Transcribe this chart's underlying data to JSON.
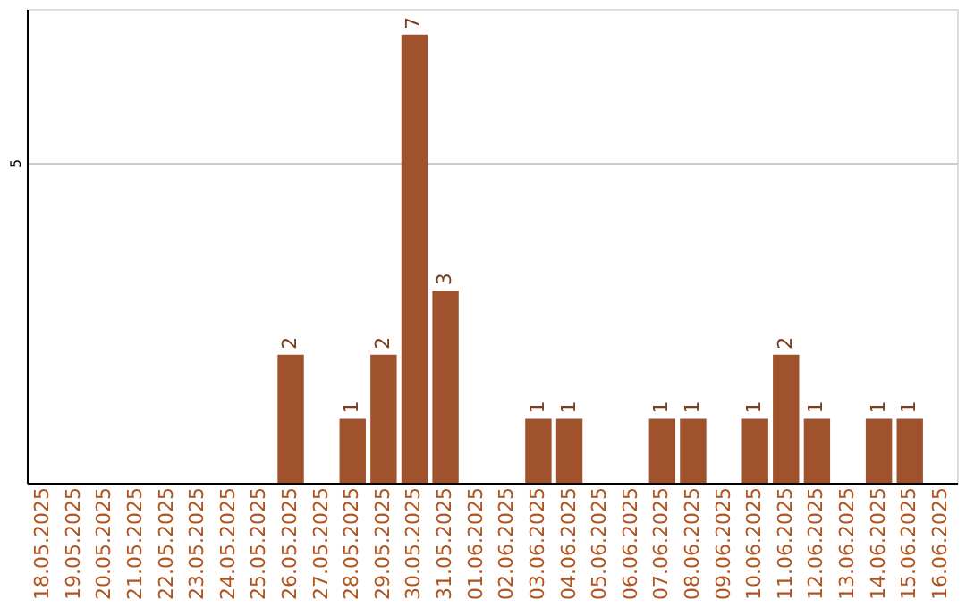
{
  "chart_data": {
    "type": "bar",
    "categories": [
      "18.05.2025",
      "19.05.2025",
      "20.05.2025",
      "21.05.2025",
      "22.05.2025",
      "23.05.2025",
      "24.05.2025",
      "25.05.2025",
      "26.05.2025",
      "27.05.2025",
      "28.05.2025",
      "29.05.2025",
      "30.05.2025",
      "31.05.2025",
      "01.06.2025",
      "02.06.2025",
      "03.06.2025",
      "04.06.2025",
      "05.06.2025",
      "06.06.2025",
      "07.06.2025",
      "08.06.2025",
      "09.06.2025",
      "10.06.2025",
      "11.06.2025",
      "12.06.2025",
      "13.06.2025",
      "14.06.2025",
      "15.06.2025",
      "16.06.2025"
    ],
    "values": [
      0,
      0,
      0,
      0,
      0,
      0,
      0,
      0,
      2,
      0,
      1,
      2,
      7,
      3,
      0,
      0,
      1,
      1,
      0,
      0,
      1,
      1,
      0,
      1,
      2,
      1,
      0,
      1,
      1,
      0
    ],
    "value_labels": [
      null,
      null,
      null,
      null,
      null,
      null,
      null,
      null,
      "2",
      null,
      "1",
      "2",
      "7",
      "3",
      null,
      null,
      "1",
      "1",
      null,
      null,
      "1",
      "1",
      null,
      "1",
      "2",
      "1",
      null,
      "1",
      "1",
      null
    ],
    "color": "#a0522d",
    "ylim": [
      0,
      7.4
    ],
    "yticks": [
      5
    ],
    "grid": "y"
  }
}
